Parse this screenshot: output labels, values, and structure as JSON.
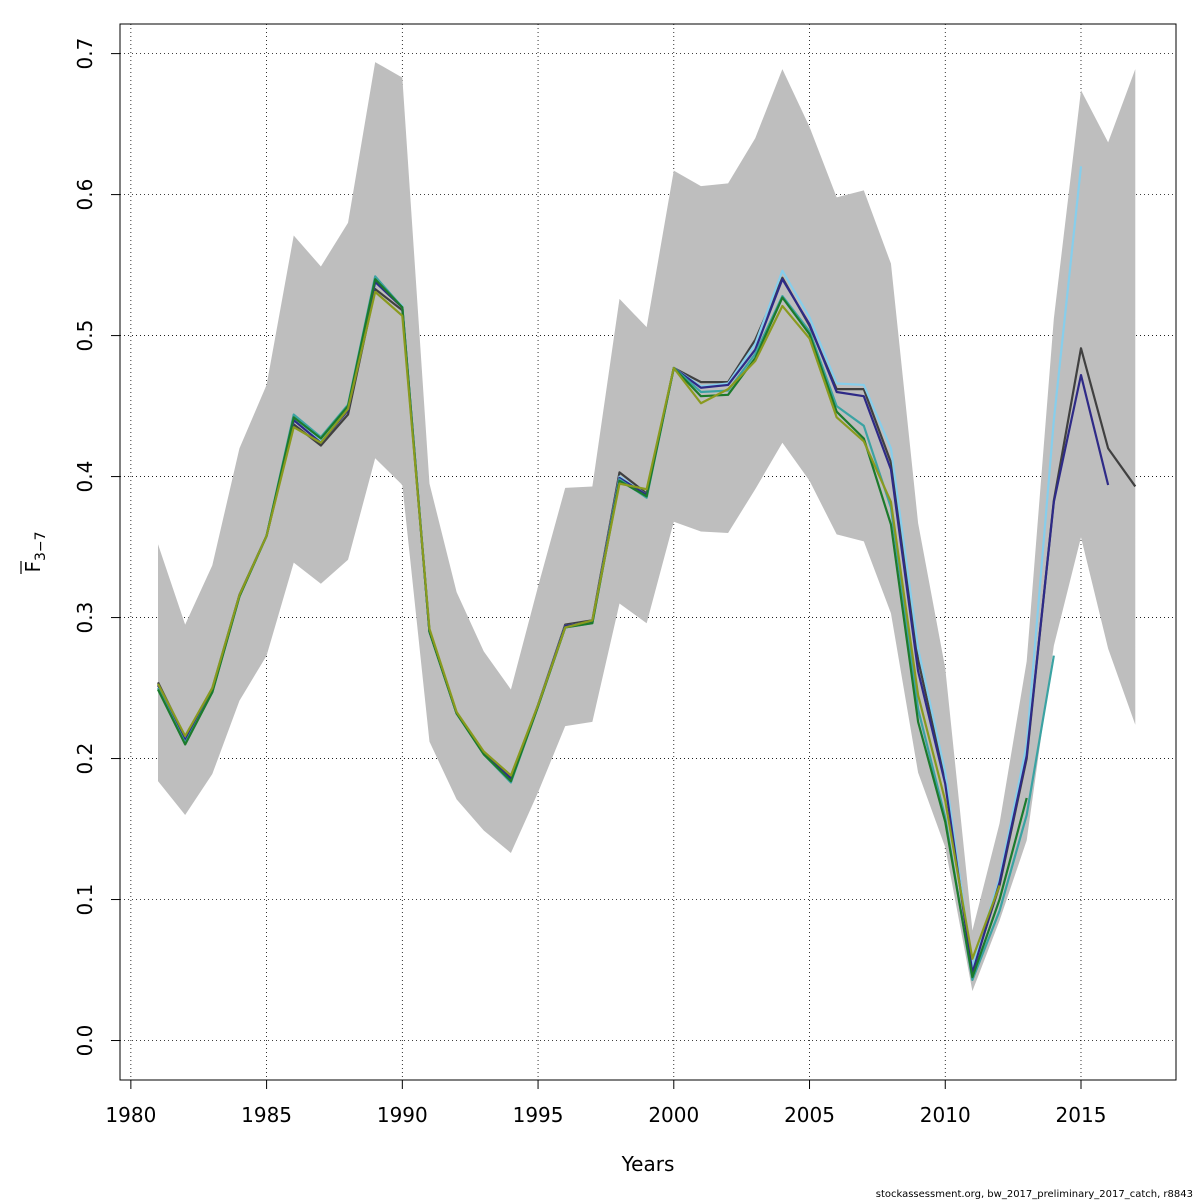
{
  "chart_data": {
    "type": "line",
    "xlabel": "Years",
    "ylabel": "F",
    "ylabel_subscript": "3−7",
    "xlim": [
      1979.6,
      2018.5
    ],
    "ylim": [
      -0.028,
      0.721
    ],
    "xticks": [
      1980,
      1985,
      1990,
      1995,
      2000,
      2005,
      2010,
      2015
    ],
    "xtick_labels": [
      "1980",
      "1985",
      "1990",
      "1995",
      "2000",
      "2005",
      "2010",
      "2015"
    ],
    "yticks": [
      0.0,
      0.1,
      0.2,
      0.3,
      0.4,
      0.5,
      0.6,
      0.7
    ],
    "ytick_labels": [
      "0.0",
      "0.1",
      "0.2",
      "0.3",
      "0.4",
      "0.5",
      "0.6",
      "0.7"
    ],
    "grid": true,
    "band_color": "#bebebe",
    "confidence_band": {
      "x": [
        1981,
        1982,
        1983,
        1984,
        1985,
        1986,
        1987,
        1988,
        1989,
        1990,
        1991,
        1992,
        1993,
        1994,
        1995,
        1996,
        1997,
        1998,
        1999,
        2000,
        2001,
        2002,
        2003,
        2004,
        2005,
        2006,
        2007,
        2008,
        2009,
        2010,
        2011,
        2012,
        2013,
        2014,
        2015,
        2016,
        2017
      ],
      "upper": [
        0.352,
        0.295,
        0.337,
        0.42,
        0.465,
        0.571,
        0.549,
        0.58,
        0.694,
        0.683,
        0.395,
        0.318,
        0.276,
        0.249,
        0.322,
        0.392,
        0.393,
        0.526,
        0.506,
        0.617,
        0.606,
        0.608,
        0.64,
        0.689,
        0.648,
        0.598,
        0.603,
        0.551,
        0.367,
        0.264,
        0.078,
        0.154,
        0.269,
        0.512,
        0.674,
        0.637,
        0.689
      ],
      "lower": [
        0.184,
        0.16,
        0.189,
        0.241,
        0.273,
        0.339,
        0.324,
        0.341,
        0.413,
        0.394,
        0.212,
        0.171,
        0.149,
        0.133,
        0.176,
        0.223,
        0.226,
        0.31,
        0.296,
        0.368,
        0.361,
        0.36,
        0.391,
        0.424,
        0.397,
        0.359,
        0.354,
        0.303,
        0.19,
        0.137,
        0.035,
        0.085,
        0.142,
        0.28,
        0.357,
        0.278,
        0.224
      ]
    },
    "series": [
      {
        "color": "#404040",
        "x": [
          1981,
          1982,
          1983,
          1984,
          1985,
          1986,
          1987,
          1988,
          1989,
          1990,
          1991,
          1992,
          1993,
          1994,
          1995,
          1996,
          1997,
          1998,
          1999,
          2000,
          2001,
          2002,
          2003,
          2004,
          2005,
          2006,
          2007,
          2008,
          2009,
          2010,
          2011,
          2012,
          2013,
          2014,
          2015,
          2016,
          2017
        ],
        "values": [
          0.254,
          0.215,
          0.25,
          0.316,
          0.358,
          0.437,
          0.422,
          0.444,
          0.533,
          0.518,
          0.29,
          0.232,
          0.204,
          0.186,
          0.238,
          0.295,
          0.298,
          0.403,
          0.388,
          0.477,
          0.467,
          0.467,
          0.497,
          0.541,
          0.507,
          0.462,
          0.462,
          0.41,
          0.27,
          0.185,
          0.05,
          0.11,
          0.2,
          0.383,
          0.491,
          0.42,
          0.393
        ]
      },
      {
        "color": "#87ceeb",
        "x": [
          1981,
          1982,
          1983,
          1984,
          1985,
          1986,
          1987,
          1988,
          1989,
          1990,
          1991,
          1992,
          1993,
          1994,
          1995,
          1996,
          1997,
          1998,
          1999,
          2000,
          2001,
          2002,
          2003,
          2004,
          2005,
          2006,
          2007,
          2008,
          2009,
          2010,
          2011,
          2012,
          2013,
          2014,
          2015
        ],
        "values": [
          0.252,
          0.214,
          0.25,
          0.316,
          0.358,
          0.44,
          0.425,
          0.448,
          0.538,
          0.521,
          0.291,
          0.232,
          0.204,
          0.186,
          0.238,
          0.294,
          0.297,
          0.4,
          0.387,
          0.477,
          0.464,
          0.466,
          0.494,
          0.546,
          0.513,
          0.466,
          0.465,
          0.42,
          0.278,
          0.19,
          0.052,
          0.115,
          0.21,
          0.44,
          0.62
        ]
      },
      {
        "color": "#2e2a87",
        "x": [
          1981,
          1982,
          1983,
          1984,
          1985,
          1986,
          1987,
          1988,
          1989,
          1990,
          1991,
          1992,
          1993,
          1994,
          1995,
          1996,
          1997,
          1998,
          1999,
          2000,
          2001,
          2002,
          2003,
          2004,
          2005,
          2006,
          2007,
          2008,
          2009,
          2010,
          2011,
          2012,
          2013,
          2014,
          2015,
          2016
        ],
        "values": [
          0.252,
          0.213,
          0.249,
          0.316,
          0.358,
          0.44,
          0.424,
          0.447,
          0.538,
          0.52,
          0.29,
          0.232,
          0.204,
          0.186,
          0.238,
          0.294,
          0.297,
          0.399,
          0.387,
          0.477,
          0.463,
          0.465,
          0.49,
          0.54,
          0.508,
          0.46,
          0.457,
          0.405,
          0.262,
          0.182,
          0.048,
          0.112,
          0.202,
          0.382,
          0.472,
          0.394
        ]
      },
      {
        "color": "#3ba3a3",
        "x": [
          1981,
          1982,
          1983,
          1984,
          1985,
          1986,
          1987,
          1988,
          1989,
          1990,
          1991,
          1992,
          1993,
          1994,
          1995,
          1996,
          1997,
          1998,
          1999,
          2000,
          2001,
          2002,
          2003,
          2004,
          2005,
          2006,
          2007,
          2008,
          2009,
          2010,
          2011,
          2012,
          2013,
          2014
        ],
        "values": [
          0.25,
          0.211,
          0.247,
          0.315,
          0.358,
          0.444,
          0.428,
          0.451,
          0.542,
          0.52,
          0.29,
          0.232,
          0.203,
          0.183,
          0.237,
          0.293,
          0.296,
          0.398,
          0.385,
          0.477,
          0.46,
          0.461,
          0.487,
          0.528,
          0.503,
          0.45,
          0.436,
          0.378,
          0.235,
          0.158,
          0.043,
          0.092,
          0.16,
          0.273
        ]
      },
      {
        "color": "#1c7a2c",
        "x": [
          1981,
          1982,
          1983,
          1984,
          1985,
          1986,
          1987,
          1988,
          1989,
          1990,
          1991,
          1992,
          1993,
          1994,
          1995,
          1996,
          1997,
          1998,
          1999,
          2000,
          2001,
          2002,
          2003,
          2004,
          2005,
          2006,
          2007,
          2008,
          2009,
          2010,
          2011,
          2012,
          2013
        ],
        "values": [
          0.249,
          0.21,
          0.247,
          0.315,
          0.358,
          0.442,
          0.427,
          0.45,
          0.54,
          0.52,
          0.29,
          0.232,
          0.203,
          0.184,
          0.237,
          0.293,
          0.296,
          0.397,
          0.386,
          0.477,
          0.457,
          0.458,
          0.484,
          0.527,
          0.501,
          0.446,
          0.427,
          0.366,
          0.226,
          0.155,
          0.045,
          0.1,
          0.172
        ]
      },
      {
        "color": "#8a9a1f",
        "x": [
          1981,
          1982,
          1983,
          1984,
          1985,
          1986,
          1987,
          1988,
          1989,
          1990,
          1991,
          1992,
          1993,
          1994,
          1995,
          1996,
          1997,
          1998,
          1999,
          2000,
          2001,
          2002,
          2003,
          2004,
          2005,
          2006,
          2007,
          2008,
          2009,
          2010,
          2011,
          2012
        ],
        "values": [
          0.253,
          0.216,
          0.25,
          0.316,
          0.358,
          0.435,
          0.424,
          0.448,
          0.531,
          0.514,
          0.292,
          0.233,
          0.205,
          0.188,
          0.238,
          0.293,
          0.298,
          0.395,
          0.391,
          0.477,
          0.452,
          0.462,
          0.482,
          0.521,
          0.498,
          0.442,
          0.425,
          0.382,
          0.245,
          0.17,
          0.058,
          0.11
        ]
      }
    ]
  },
  "footer_text": "stockassessment.org, bw_2017_preliminary_2017_catch, r8843"
}
